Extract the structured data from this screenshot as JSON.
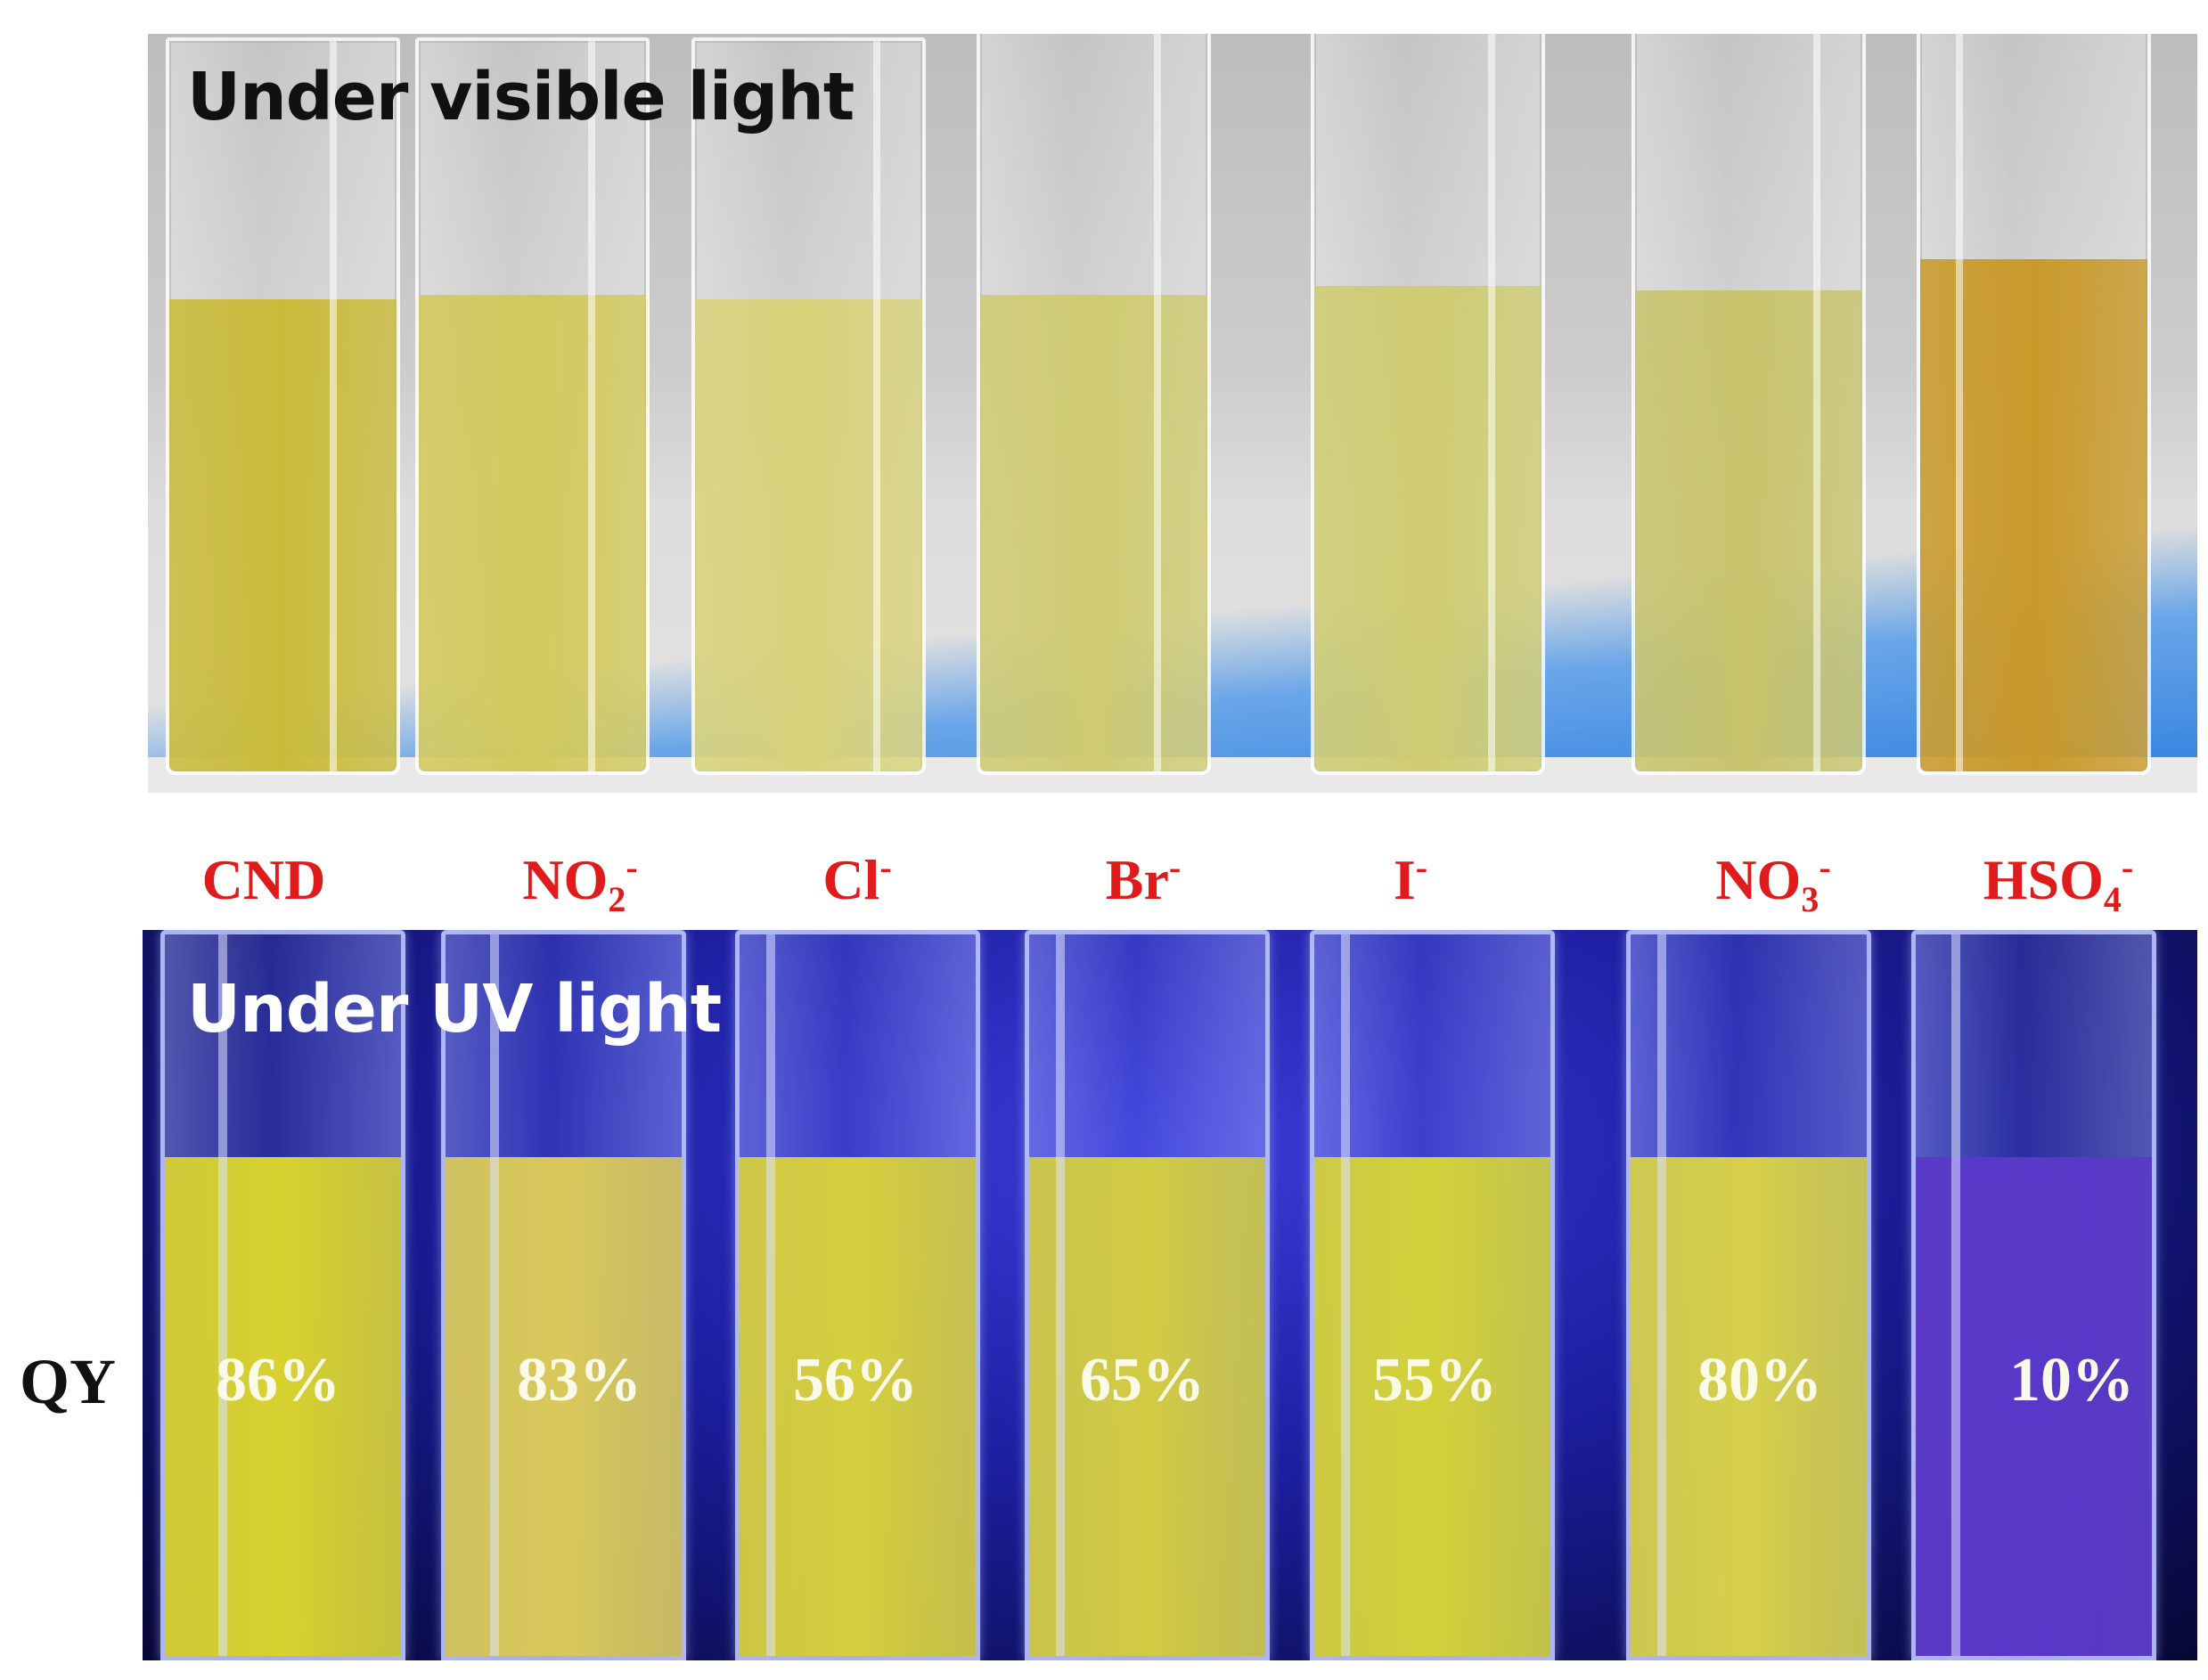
{
  "top_panel": {
    "title": "Under visible light"
  },
  "bottom_panel": {
    "title": "Under UV light"
  },
  "qy_label": "QY",
  "samples": [
    {
      "base": "CND",
      "sub": "",
      "sup": "",
      "qy": "86%",
      "visible_color": "#c9bb3a",
      "uv_color": "#d8d230"
    },
    {
      "base": "NO",
      "sub": "2",
      "sup": "-",
      "qy": "83%",
      "visible_color": "#d2c95c",
      "uv_color": "#d9c95a"
    },
    {
      "base": "Cl",
      "sub": "",
      "sup": "-",
      "qy": "56%",
      "visible_color": "#d8d27a",
      "uv_color": "#d6cf3e"
    },
    {
      "base": "Br",
      "sub": "",
      "sup": "-",
      "qy": "65%",
      "visible_color": "#cfcb72",
      "uv_color": "#d2cc44"
    },
    {
      "base": "I",
      "sub": "",
      "sup": "-",
      "qy": "55%",
      "visible_color": "#cfcc72",
      "uv_color": "#d4d23a"
    },
    {
      "base": "NO",
      "sub": "3",
      "sup": "-",
      "qy": "80%",
      "visible_color": "#c8c46c",
      "uv_color": "#d6d04a"
    },
    {
      "base": "HSO",
      "sub": "4",
      "sup": "-",
      "qy": "10%",
      "visible_color": "#c99a2a",
      "uv_color": "#5a38c8"
    }
  ]
}
